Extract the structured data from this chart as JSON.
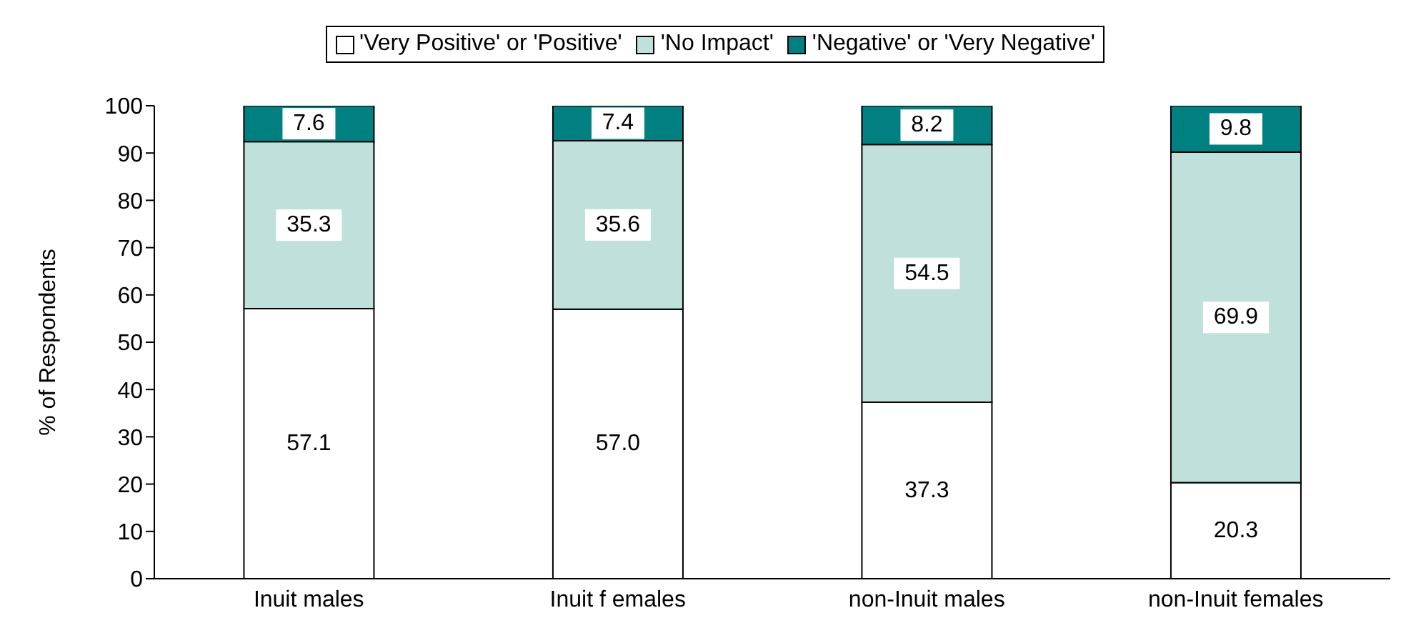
{
  "chart_data": {
    "type": "bar",
    "stacked": true,
    "ylabel": "% of Respondents",
    "categories": [
      "Inuit males",
      "Inuit f emales",
      "non-Inuit males",
      "non-Inuit females"
    ],
    "series": [
      {
        "name": "'Very Positive' or 'Positive'",
        "color": "#ffffff",
        "values": [
          57.1,
          57.0,
          37.3,
          20.3
        ],
        "value_labels": [
          "57.1",
          "57.0",
          "37.3",
          "20.3"
        ]
      },
      {
        "name": "'No Impact'",
        "color": "#c0e0dc",
        "values": [
          35.3,
          35.6,
          54.5,
          69.9
        ],
        "value_labels": [
          "35.3",
          "35.6",
          "54.5",
          "69.9"
        ]
      },
      {
        "name": "'Negative' or 'Very Negative'",
        "color": "#008080",
        "values": [
          7.6,
          7.4,
          8.2,
          9.8
        ],
        "value_labels": [
          "7.6",
          "7.4",
          "8.2",
          "9.8"
        ]
      }
    ],
    "ylim": [
      0,
      100
    ],
    "yticks": [
      0,
      10,
      20,
      30,
      40,
      50,
      60,
      70,
      80,
      90,
      100
    ],
    "legend": "top"
  }
}
